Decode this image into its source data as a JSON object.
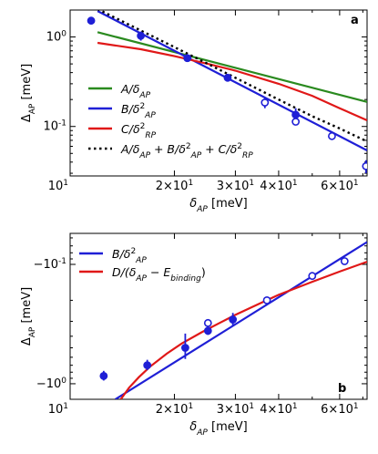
{
  "chart_data": [
    {
      "panel_label": "a",
      "type": "line",
      "xscale": "log",
      "yscale": "log",
      "xlim": [
        10,
        72
      ],
      "ylim": [
        0.028,
        2.0
      ],
      "xlabel": "δ_AP [meV]",
      "ylabel": "Δ_AP [meV]",
      "x_ticks": [
        {
          "value": 10,
          "label": "10^1"
        },
        {
          "value": 20,
          "label": "2×10^1"
        },
        {
          "value": 30,
          "label": "3×10^1"
        },
        {
          "value": 40,
          "label": "4×10^1"
        },
        {
          "value": 60,
          "label": "6×10^1"
        }
      ],
      "y_ticks": [
        {
          "value": 0.1,
          "label": "10^-1"
        },
        {
          "value": 1,
          "label": "10^0"
        }
      ],
      "legend_position": "center-left",
      "series": [
        {
          "name": "A/δ_AP",
          "color": "#2a8a1f",
          "style": "solid",
          "x": [
            12,
            72
          ],
          "y": [
            1.13,
            0.188
          ]
        },
        {
          "name": "B/δ²_AP",
          "color": "#1f1fd6",
          "style": "solid",
          "x": [
            12,
            72
          ],
          "y": [
            1.95,
            0.054
          ]
        },
        {
          "name": "C/δ²_RP",
          "color": "#e01818",
          "style": "solid",
          "x": [
            12,
            16,
            20,
            25,
            30,
            40,
            50,
            60,
            72
          ],
          "y": [
            0.86,
            0.73,
            0.61,
            0.5,
            0.42,
            0.3,
            0.22,
            0.16,
            0.117
          ]
        },
        {
          "name": "A/δ_AP + B/δ²_AP + C/δ²_RP",
          "color": "#000000",
          "style": "dotted",
          "x": [
            12,
            16,
            20,
            25,
            30,
            40,
            50,
            60,
            72
          ],
          "y": [
            2.05,
            1.18,
            0.77,
            0.5,
            0.35,
            0.2,
            0.13,
            0.095,
            0.068
          ]
        }
      ],
      "points": [
        {
          "x": 11.5,
          "y": 1.52,
          "filled": true,
          "err": 0
        },
        {
          "x": 16.0,
          "y": 1.03,
          "filled": true,
          "err": 0.12
        },
        {
          "x": 21.8,
          "y": 0.58,
          "filled": true,
          "err": 0
        },
        {
          "x": 28.5,
          "y": 0.35,
          "filled": true,
          "err": 0
        },
        {
          "x": 36.5,
          "y": 0.185,
          "filled": false,
          "err": 0.025
        },
        {
          "x": 44.8,
          "y": 0.135,
          "filled": true,
          "err": 0.025
        },
        {
          "x": 44.8,
          "y": 0.113,
          "filled": false,
          "err": 0
        },
        {
          "x": 57.0,
          "y": 0.078,
          "filled": false,
          "err": 0
        },
        {
          "x": 71.5,
          "y": 0.036,
          "filled": false,
          "err": 0.006
        }
      ]
    },
    {
      "panel_label": "b",
      "type": "line",
      "xscale": "log",
      "yscale": "symlog (negative values)",
      "xlim": [
        10,
        72
      ],
      "ylim": [
        -1.35,
        -0.055
      ],
      "xlabel": "δ_AP [meV]",
      "ylabel": "Δ_AP [meV]",
      "x_ticks": [
        {
          "value": 10,
          "label": "10^1"
        },
        {
          "value": 20,
          "label": "2×10^1"
        },
        {
          "value": 30,
          "label": "3×10^1"
        },
        {
          "value": 40,
          "label": "4×10^1"
        },
        {
          "value": 60,
          "label": "6×10^1"
        }
      ],
      "y_ticks": [
        {
          "value": -0.1,
          "label": "−10^-1"
        },
        {
          "value": -1,
          "label": "−10^0"
        }
      ],
      "legend_position": "top-left",
      "series": [
        {
          "name": "B/δ²_AP",
          "color": "#1f1fd6",
          "style": "solid",
          "x": [
            13.5,
            72
          ],
          "y": [
            -1.35,
            -0.065
          ]
        },
        {
          "name": "D/(δ_AP − E_binding)",
          "color": "#e01818",
          "style": "solid",
          "x": [
            14.0,
            14.8,
            15.8,
            17.0,
            19.0,
            21.0,
            24.0,
            27.0,
            30.0,
            35.0,
            40.0,
            50.0,
            60.0,
            72.0
          ],
          "y": [
            -1.35,
            -1.08,
            -0.88,
            -0.72,
            -0.56,
            -0.46,
            -0.37,
            -0.31,
            -0.265,
            -0.215,
            -0.18,
            -0.14,
            -0.115,
            -0.095
          ]
        }
      ],
      "points": [
        {
          "x": 12.5,
          "y": -0.86,
          "filled": true,
          "err": 0.08
        },
        {
          "x": 16.7,
          "y": -0.7,
          "filled": true,
          "err": 0.07
        },
        {
          "x": 21.5,
          "y": -0.5,
          "filled": true,
          "err": 0.12
        },
        {
          "x": 25.0,
          "y": -0.36,
          "filled": true,
          "err": 0.03
        },
        {
          "x": 25.0,
          "y": -0.31,
          "filled": false,
          "err": 0
        },
        {
          "x": 29.5,
          "y": -0.29,
          "filled": true,
          "err": 0.035
        },
        {
          "x": 37.0,
          "y": -0.2,
          "filled": false,
          "err": 0
        },
        {
          "x": 50.0,
          "y": -0.125,
          "filled": false,
          "err": 0
        },
        {
          "x": 62.0,
          "y": -0.094,
          "filled": false,
          "err": 0.006
        }
      ]
    }
  ]
}
